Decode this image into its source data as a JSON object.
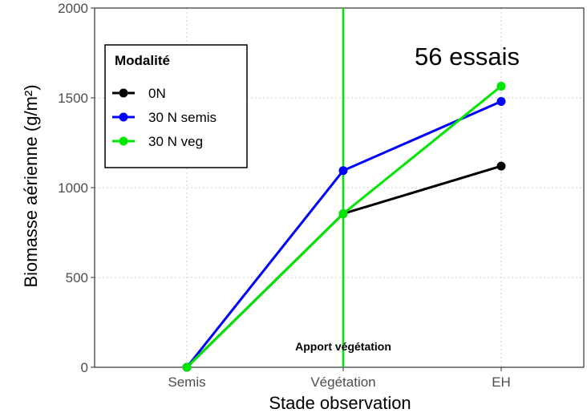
{
  "chart_data": {
    "type": "line",
    "title": "",
    "xlabel": "Stade observation",
    "ylabel": "Biomasse aérienne (g/m²)",
    "categories": [
      "Semis",
      "Végétation",
      "EH"
    ],
    "ylim": [
      0,
      2000
    ],
    "yticks": [
      0,
      500,
      1000,
      1500,
      2000
    ],
    "grid": true,
    "legend": {
      "title": "Modalité",
      "placement": "top-left"
    },
    "series": [
      {
        "name": "0N",
        "color": "#000000",
        "values": [
          0,
          855,
          1120
        ]
      },
      {
        "name": "30 N semis",
        "color": "#0000ff",
        "values": [
          0,
          1095,
          1480
        ]
      },
      {
        "name": "30 N veg",
        "color": "#00e600",
        "values": [
          0,
          855,
          1565
        ]
      }
    ],
    "vline": {
      "category": "Végétation",
      "color": "#00e600",
      "label": "Apport végétation"
    },
    "note": "56 essais"
  }
}
